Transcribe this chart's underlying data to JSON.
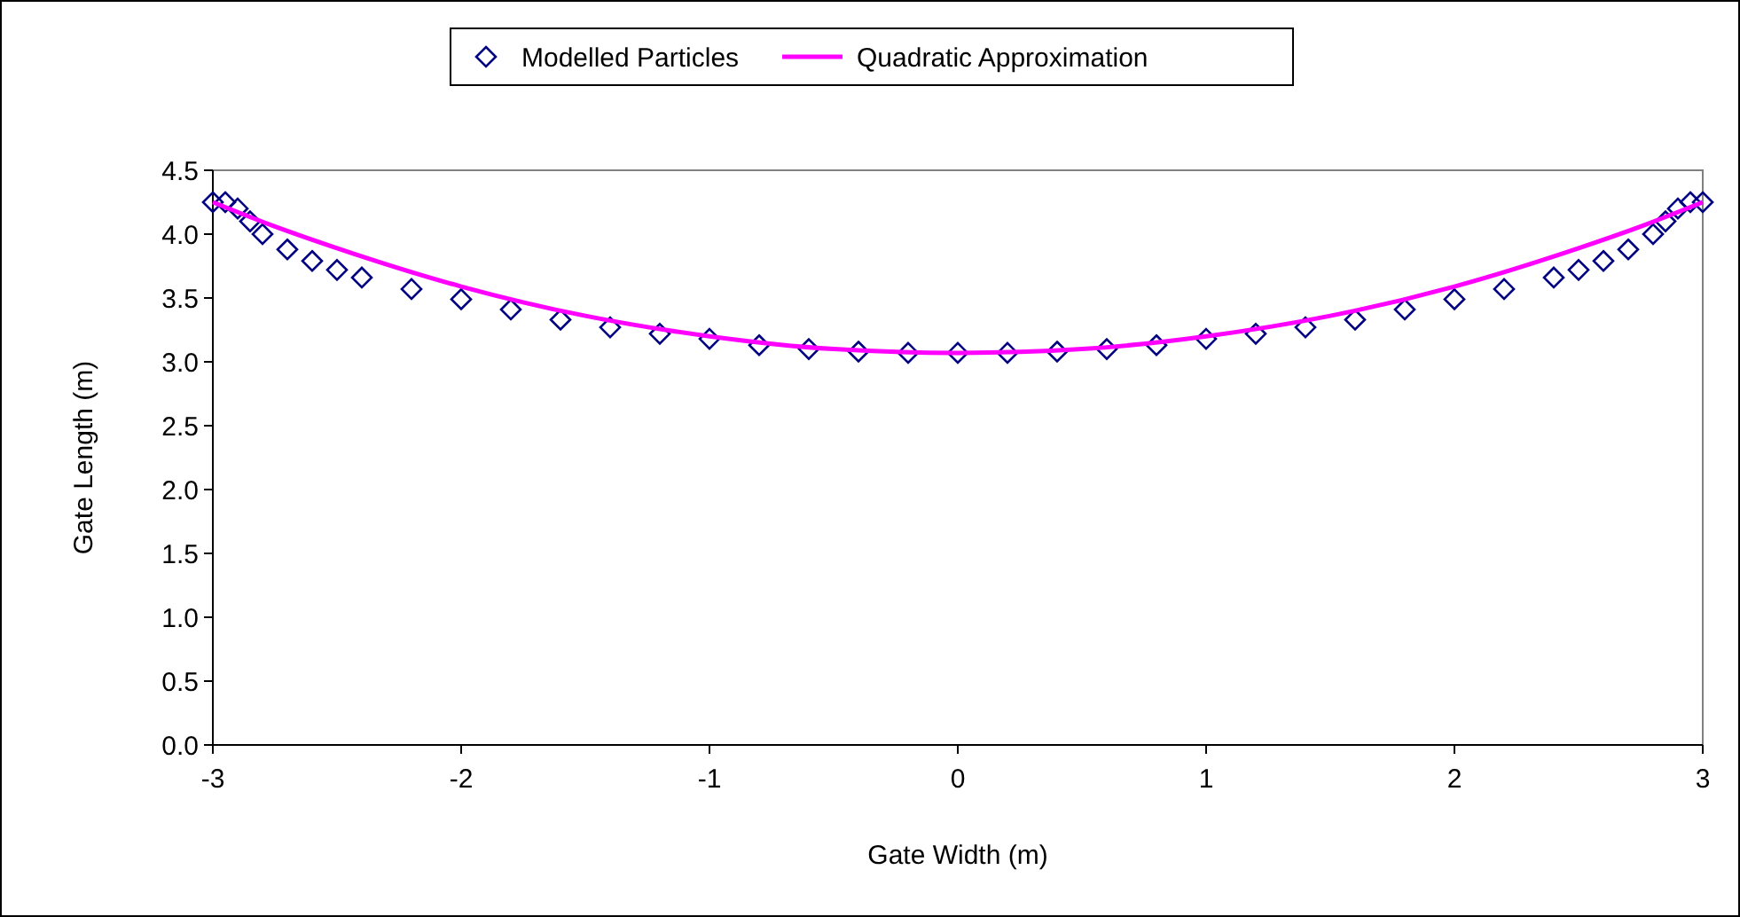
{
  "chart_data": {
    "type": "scatter",
    "xlabel": "Gate Width (m)",
    "ylabel": "Gate Length (m)",
    "xlim": [
      -3,
      3
    ],
    "xticks": [
      -3,
      -2,
      -1,
      0,
      1,
      2,
      3
    ],
    "ylim": [
      0,
      4.5
    ],
    "yticks": [
      {
        "value": 0,
        "label": "0.0"
      },
      {
        "value": 0.5,
        "label": "0.5"
      },
      {
        "value": 1,
        "label": "1.0"
      },
      {
        "value": 1.5,
        "label": "1.5"
      },
      {
        "value": 2,
        "label": "2.0"
      },
      {
        "value": 2.5,
        "label": "2.5"
      },
      {
        "value": 3,
        "label": "3.0"
      },
      {
        "value": 3.5,
        "label": "3.5"
      },
      {
        "value": 4,
        "label": "4.0"
      },
      {
        "value": 4.5,
        "label": "4.5"
      }
    ],
    "grid": false,
    "legend": "top",
    "series": [
      {
        "name": "Modelled Particles",
        "marker": "diamond",
        "color": "#000080",
        "x": [
          -3,
          -2.95,
          -2.9,
          -2.85,
          -2.8,
          -2.7,
          -2.6,
          -2.5,
          -2.4,
          -2.2,
          -2,
          -1.8,
          -1.6,
          -1.4,
          -1.2,
          -1,
          -0.8,
          -0.6,
          -0.4,
          -0.2,
          0,
          0.2,
          0.4,
          0.6,
          0.8,
          1,
          1.2,
          1.4,
          1.6,
          1.8,
          2,
          2.2,
          2.4,
          2.5,
          2.6,
          2.7,
          2.8,
          2.85,
          2.9,
          2.95,
          3
        ],
        "values": [
          4.25,
          4.25,
          4.2,
          4.1,
          4.0,
          3.88,
          3.79,
          3.72,
          3.66,
          3.57,
          3.49,
          3.41,
          3.33,
          3.27,
          3.22,
          3.18,
          3.13,
          3.1,
          3.08,
          3.07,
          3.07,
          3.07,
          3.08,
          3.1,
          3.13,
          3.18,
          3.22,
          3.27,
          3.33,
          3.41,
          3.49,
          3.57,
          3.66,
          3.72,
          3.79,
          3.88,
          4.0,
          4.1,
          4.2,
          4.25,
          4.25
        ]
      },
      {
        "name": "Quadratic Approximation",
        "type": "line",
        "line_style": "solid",
        "color": "#ff00ff",
        "x": [
          -3,
          -2.75,
          -2.5,
          -2,
          -1.5,
          -1,
          -0.5,
          0,
          0.5,
          1,
          1.5,
          2,
          2.5,
          2.75,
          3
        ],
        "values": [
          4.25,
          4.06,
          3.89,
          3.59,
          3.36,
          3.2,
          3.1,
          3.07,
          3.1,
          3.2,
          3.36,
          3.59,
          3.89,
          4.06,
          4.25
        ]
      }
    ]
  }
}
